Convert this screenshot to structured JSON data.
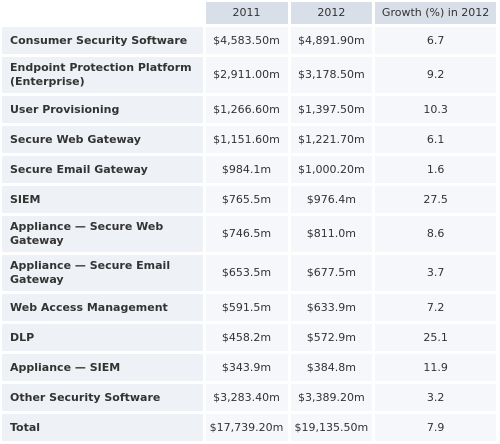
{
  "table": {
    "headers": [
      "",
      "2011",
      "2012",
      "Growth (%) in 2012"
    ],
    "rows": [
      {
        "label": "Consumer Security Software",
        "y2011": "$4,583.50m",
        "y2012": "$4,891.90m",
        "growth": "6.7"
      },
      {
        "label": "Endpoint Protection Platform (Enterprise)",
        "y2011": "$2,911.00m",
        "y2012": "$3,178.50m",
        "growth": "9.2"
      },
      {
        "label": "User Provisioning",
        "y2011": "$1,266.60m",
        "y2012": "$1,397.50m",
        "growth": "10.3"
      },
      {
        "label": "Secure Web Gateway",
        "y2011": "$1,151.60m",
        "y2012": "$1,221.70m",
        "growth": "6.1"
      },
      {
        "label": "Secure Email Gateway",
        "y2011": "$984.1m",
        "y2012": "$1,000.20m",
        "growth": "1.6"
      },
      {
        "label": "SIEM",
        "y2011": "$765.5m",
        "y2012": "$976.4m",
        "growth": "27.5"
      },
      {
        "label": "Appliance — Secure Web Gateway",
        "y2011": "$746.5m",
        "y2012": "$811.0m",
        "growth": "8.6"
      },
      {
        "label": "Appliance — Secure Email Gateway",
        "y2011": "$653.5m",
        "y2012": "$677.5m",
        "growth": "3.7"
      },
      {
        "label": "Web Access Management",
        "y2011": "$591.5m",
        "y2012": "$633.9m",
        "growth": "7.2"
      },
      {
        "label": "DLP",
        "y2011": "$458.2m",
        "y2012": "$572.9m",
        "growth": "25.1"
      },
      {
        "label": "Appliance — SIEM",
        "y2011": "$343.9m",
        "y2012": "$384.8m",
        "growth": "11.9"
      },
      {
        "label": "Other Security Software",
        "y2011": "$3,283.40m",
        "y2012": "$3,389.20m",
        "growth": "3.2"
      },
      {
        "label": "Total",
        "y2011": "$17,739.20m",
        "y2012": "$19,135.50m",
        "growth": "7.9"
      }
    ]
  },
  "colors": {
    "header_bg": "#d9dfe8",
    "label_bg": "#eef1f5",
    "cell_bg": "#f5f7fa",
    "text": "#333333"
  }
}
